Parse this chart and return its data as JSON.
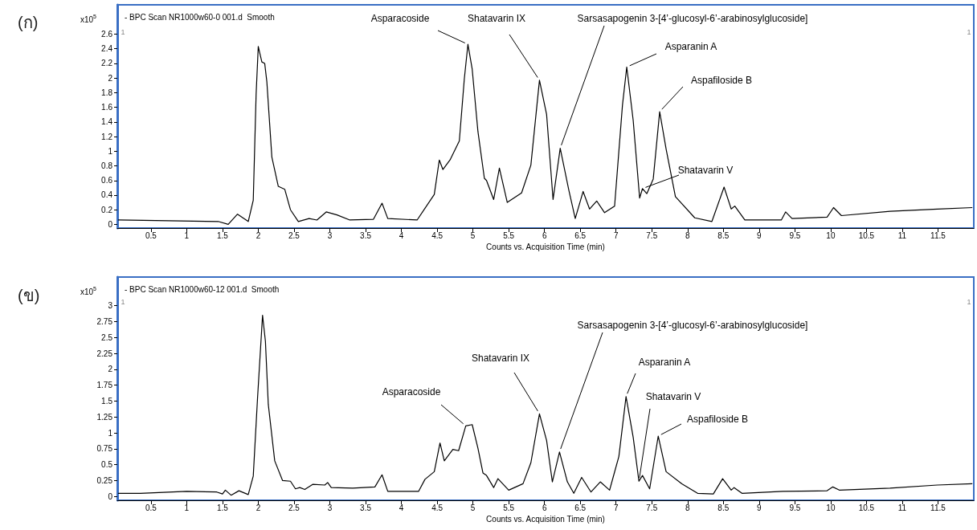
{
  "chart_data": [
    {
      "type": "line",
      "title": "- BPC Scan NR1000w60-0 001.d  Smooth",
      "ylabel": "x10$^{5}$",
      "xlabel": "Counts vs. Acquisition Time (min)",
      "color": "#000000",
      "grid": false,
      "marker": "none",
      "xlim": [
        0.03,
        12.0
      ],
      "xticks": [
        0.5,
        1,
        1.5,
        2,
        2.5,
        3,
        3.5,
        4,
        4.5,
        5,
        5.5,
        6,
        6.5,
        7,
        7.5,
        8,
        8.5,
        9,
        9.5,
        10,
        10.5,
        11,
        11.5
      ],
      "ylim": [
        -0.05,
        3.0
      ],
      "yticks": [
        0,
        0.2,
        0.4,
        0.6,
        0.8,
        1,
        1.2,
        1.4,
        1.6,
        1.8,
        2,
        2.2,
        2.4,
        2.6
      ],
      "annotations": [
        "(ก)",
        "1",
        "1",
        {
          "text": "Asparacoside",
          "x": 4.93,
          "y": 2.46
        },
        {
          "text": "Shatavarin IX",
          "x": 5.93,
          "y": 1.97
        },
        {
          "text": "Sarsasapogenin 3-[4’-glucosyl-6’-arabinosylglucoside]",
          "x": 6.22,
          "y": 1.04
        },
        {
          "text": "Asparanin A",
          "x": 7.15,
          "y": 2.15
        },
        {
          "text": "Aspafiloside B",
          "x": 7.61,
          "y": 1.54
        },
        {
          "text": "Shatavarin V",
          "x": 7.37,
          "y": 0.49
        }
      ],
      "x": [
        0.04,
        1.44,
        1.58,
        1.71,
        1.86,
        1.93,
        1.97,
        2.0,
        2.05,
        2.09,
        2.12,
        2.19,
        2.28,
        2.37,
        2.45,
        2.56,
        2.71,
        2.82,
        2.95,
        3.1,
        3.28,
        3.61,
        3.73,
        3.81,
        4.22,
        4.33,
        4.46,
        4.53,
        4.58,
        4.68,
        4.81,
        4.88,
        4.93,
        4.99,
        5.07,
        5.16,
        5.19,
        5.29,
        5.37,
        5.48,
        5.68,
        5.81,
        5.93,
        6.03,
        6.12,
        6.22,
        6.34,
        6.43,
        6.54,
        6.63,
        6.73,
        6.84,
        6.98,
        7.09,
        7.15,
        7.24,
        7.33,
        7.37,
        7.43,
        7.52,
        7.61,
        7.7,
        7.83,
        8.1,
        8.34,
        8.51,
        8.61,
        8.66,
        8.8,
        9.31,
        9.37,
        9.46,
        9.95,
        10.04,
        10.15,
        10.83,
        11.49,
        11.98
      ],
      "values": [
        0.06,
        0.04,
        0.0,
        0.14,
        0.04,
        0.33,
        1.78,
        2.43,
        2.22,
        2.2,
        1.95,
        0.92,
        0.52,
        0.48,
        0.2,
        0.04,
        0.08,
        0.06,
        0.17,
        0.13,
        0.06,
        0.07,
        0.29,
        0.08,
        0.06,
        0.22,
        0.41,
        0.88,
        0.75,
        0.88,
        1.14,
        1.99,
        2.46,
        2.12,
        1.27,
        0.63,
        0.6,
        0.34,
        0.77,
        0.3,
        0.43,
        0.81,
        1.97,
        1.5,
        0.34,
        1.04,
        0.47,
        0.08,
        0.45,
        0.21,
        0.32,
        0.16,
        0.25,
        1.63,
        2.15,
        1.42,
        0.36,
        0.49,
        0.42,
        0.62,
        1.54,
        1.03,
        0.38,
        0.09,
        0.04,
        0.51,
        0.21,
        0.25,
        0.06,
        0.06,
        0.17,
        0.08,
        0.1,
        0.23,
        0.12,
        0.18,
        0.21,
        0.23
      ]
    },
    {
      "type": "line",
      "title": "- BPC Scan NR1000w60-12 001.d  Smooth",
      "ylabel": "x10$^{5}$",
      "xlabel": "Counts vs. Acquisition Time (min)",
      "color": "#000000",
      "grid": false,
      "marker": "none",
      "xlim": [
        0.03,
        12.0
      ],
      "xticks": [
        0.5,
        1,
        1.5,
        2,
        2.5,
        3,
        3.5,
        4,
        4.5,
        5,
        5.5,
        6,
        6.5,
        7,
        7.5,
        8,
        8.5,
        9,
        9.5,
        10,
        10.5,
        11,
        11.5
      ],
      "ylim": [
        -0.06,
        3.45
      ],
      "yticks": [
        0,
        0.25,
        0.5,
        0.75,
        1,
        1.25,
        1.5,
        1.75,
        2,
        2.25,
        2.5,
        2.75,
        3
      ],
      "annotations": [
        "(ข)",
        "1",
        "1",
        {
          "text": "Asparacoside",
          "x": 4.9,
          "y": 1.11
        },
        {
          "text": "Shatavarin IX",
          "x": 5.93,
          "y": 1.3
        },
        {
          "text": "Sarsasapogenin 3-[4’-glucosyl-6’-arabinosylglucoside]",
          "x": 6.21,
          "y": 0.7
        },
        {
          "text": "Asparanin A",
          "x": 7.14,
          "y": 1.57
        },
        {
          "text": "Shatavarin V",
          "x": 7.32,
          "y": 0.24
        },
        {
          "text": "Aspafiloside B",
          "x": 7.59,
          "y": 0.95
        }
      ],
      "x": [
        0.04,
        0.35,
        1.0,
        1.42,
        1.5,
        1.54,
        1.62,
        1.73,
        1.86,
        1.93,
        1.99,
        2.06,
        2.1,
        2.14,
        2.23,
        2.34,
        2.45,
        2.52,
        2.58,
        2.65,
        2.76,
        2.93,
        2.97,
        3.02,
        3.32,
        3.63,
        3.73,
        3.81,
        4.24,
        4.33,
        4.46,
        4.54,
        4.6,
        4.72,
        4.8,
        4.9,
        4.99,
        5.07,
        5.14,
        5.19,
        5.29,
        5.35,
        5.5,
        5.7,
        5.81,
        5.93,
        6.03,
        6.11,
        6.21,
        6.32,
        6.41,
        6.52,
        6.65,
        6.78,
        6.91,
        7.04,
        7.14,
        7.24,
        7.32,
        7.37,
        7.47,
        7.59,
        7.7,
        7.92,
        8.14,
        8.36,
        8.49,
        8.61,
        8.65,
        8.76,
        9.33,
        9.95,
        10.03,
        10.12,
        10.83,
        11.49,
        11.98
      ],
      "values": [
        0.05,
        0.05,
        0.08,
        0.07,
        0.04,
        0.1,
        0.02,
        0.09,
        0.03,
        0.32,
        1.55,
        2.85,
        2.44,
        1.45,
        0.56,
        0.25,
        0.24,
        0.12,
        0.14,
        0.11,
        0.19,
        0.18,
        0.22,
        0.14,
        0.13,
        0.15,
        0.34,
        0.08,
        0.08,
        0.27,
        0.39,
        0.84,
        0.56,
        0.74,
        0.72,
        1.11,
        1.13,
        0.76,
        0.37,
        0.33,
        0.14,
        0.28,
        0.1,
        0.2,
        0.53,
        1.3,
        0.88,
        0.23,
        0.7,
        0.23,
        0.05,
        0.3,
        0.07,
        0.23,
        0.1,
        0.63,
        1.57,
        0.93,
        0.24,
        0.33,
        0.12,
        0.95,
        0.39,
        0.2,
        0.05,
        0.04,
        0.28,
        0.1,
        0.14,
        0.05,
        0.08,
        0.09,
        0.15,
        0.1,
        0.13,
        0.18,
        0.2
      ]
    }
  ]
}
